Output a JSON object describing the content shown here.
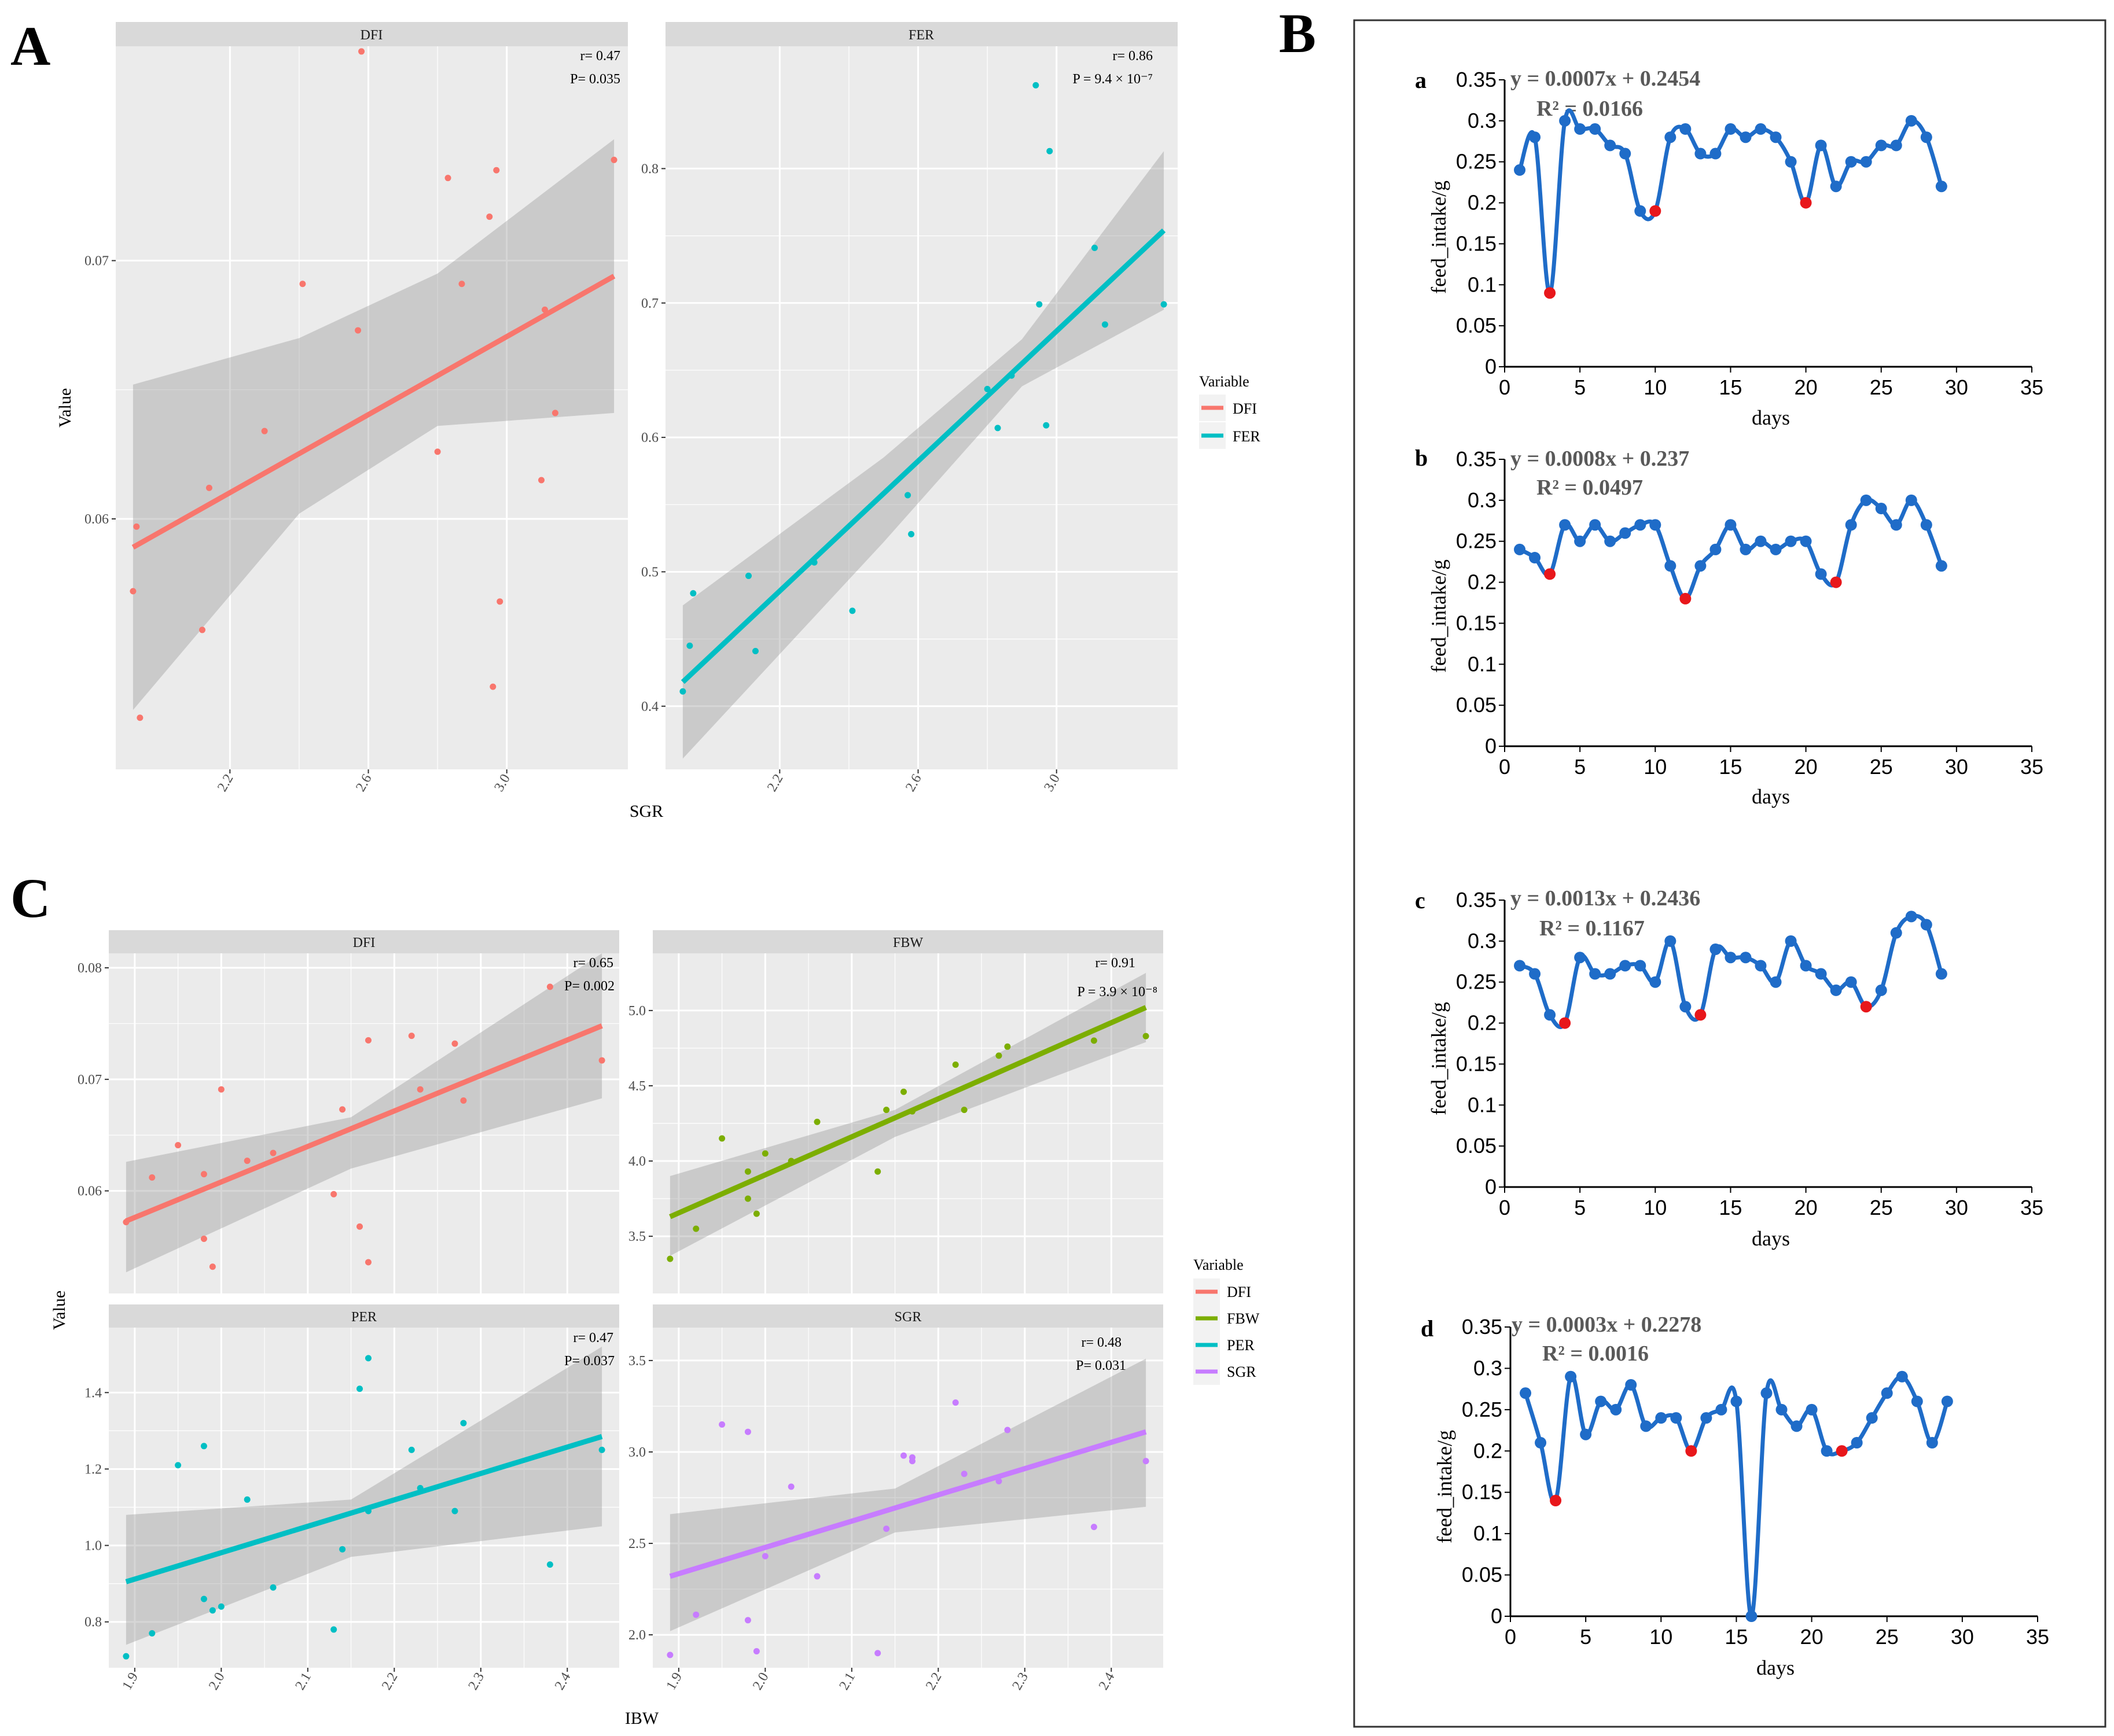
{
  "panels": {
    "A": "A",
    "B": "B",
    "C": "C"
  },
  "A": {
    "xlabel": "SGR",
    "ylabel": "Value",
    "legend": {
      "title": "Variable",
      "items": [
        {
          "label": "DFI",
          "color": "#F8766D"
        },
        {
          "label": "FER",
          "color": "#00BFC4"
        }
      ]
    },
    "facets": [
      {
        "strip": "DFI",
        "stat1": "r= 0.47",
        "stat2": "P= 0.035"
      },
      {
        "strip": "FER",
        "stat1": "r= 0.86",
        "stat2": "P = 9.4 × 10⁻⁷"
      }
    ]
  },
  "C": {
    "xlabel": "IBW",
    "ylabel": "Value",
    "legend": {
      "title": "Variable",
      "items": [
        {
          "label": "DFI",
          "color": "#F8766D"
        },
        {
          "label": "FBW",
          "color": "#7CAE00"
        },
        {
          "label": "PER",
          "color": "#00BFC4"
        },
        {
          "label": "SGR",
          "color": "#C77CFF"
        }
      ]
    },
    "facets": [
      {
        "strip": "DFI",
        "stat1": "r= 0.65",
        "stat2": "P= 0.002"
      },
      {
        "strip": "FBW",
        "stat1": "r= 0.91",
        "stat2": "P = 3.9 × 10⁻⁸"
      },
      {
        "strip": "PER",
        "stat1": "r= 0.47",
        "stat2": "P= 0.037"
      },
      {
        "strip": "SGR",
        "stat1": "r= 0.48",
        "stat2": "P= 0.031"
      }
    ]
  },
  "B": {
    "xlabel": "days",
    "ylabel": "feed_intake/g",
    "charts": [
      {
        "letter": "a",
        "equation": "y = 0.0007x + 0.2454",
        "r2": "R² = 0.0166"
      },
      {
        "letter": "b",
        "equation": "y = 0.0008x + 0.237",
        "r2": "R² = 0.0497"
      },
      {
        "letter": "c",
        "equation": "y = 0.0013x + 0.2436",
        "r2": "R² = 0.1167"
      },
      {
        "letter": "d",
        "equation": "y = 0.0003x + 0.2278",
        "r2": "R² = 0.0016"
      }
    ]
  },
  "chart_data": [
    {
      "id": "A-DFI",
      "type": "scatter",
      "title": "DFI",
      "xlabel": "SGR",
      "ylabel": "Value",
      "color": "#F8766D",
      "xlim": [
        1.87,
        3.35
      ],
      "ylim": [
        0.0503,
        0.0783
      ],
      "xticks": [
        2.2,
        2.6,
        3.0
      ],
      "xtick_labels": [
        "2.2",
        "2.6",
        "3.0"
      ],
      "yticks": [
        0.06,
        0.07
      ],
      "ytick_labels": [
        "0.06",
        "0.07"
      ],
      "fit": {
        "x": [
          1.92,
          3.31
        ],
        "y": [
          0.0589,
          0.0694
        ]
      },
      "band": {
        "x": [
          1.92,
          2.4,
          2.8,
          3.31
        ],
        "upper": [
          0.0652,
          0.067,
          0.0695,
          0.0747
        ],
        "lower": [
          0.0526,
          0.0602,
          0.0636,
          0.0641
        ]
      },
      "x": [
        1.92,
        1.93,
        1.94,
        2.12,
        2.14,
        2.41,
        2.3,
        2.57,
        2.58,
        2.8,
        2.83,
        2.87,
        2.95,
        2.97,
        2.96,
        2.98,
        3.1,
        3.11,
        3.14,
        3.31
      ],
      "y": [
        0.0572,
        0.0597,
        0.0523,
        0.0557,
        0.0612,
        0.0691,
        0.0634,
        0.0673,
        0.0781,
        0.0626,
        0.0732,
        0.0691,
        0.0717,
        0.0735,
        0.0535,
        0.0568,
        0.0615,
        0.0681,
        0.0641,
        0.0739
      ]
    },
    {
      "id": "A-FER",
      "type": "scatter",
      "title": "FER",
      "xlabel": "SGR",
      "ylabel": "Value",
      "color": "#00BFC4",
      "xlim": [
        1.87,
        3.35
      ],
      "ylim": [
        0.353,
        0.891
      ],
      "xticks": [
        2.2,
        2.6,
        3.0
      ],
      "xtick_labels": [
        "2.2",
        "2.6",
        "3.0"
      ],
      "yticks": [
        0.4,
        0.5,
        0.6,
        0.7,
        0.8
      ],
      "ytick_labels": [
        "0.4",
        "0.5",
        "0.6",
        "0.7",
        "0.8"
      ],
      "fit": {
        "x": [
          1.92,
          3.31
        ],
        "y": [
          0.418,
          0.754
        ]
      },
      "band": {
        "x": [
          1.92,
          2.5,
          2.9,
          3.31
        ],
        "upper": [
          0.475,
          0.585,
          0.673,
          0.813
        ],
        "lower": [
          0.361,
          0.522,
          0.638,
          0.695
        ]
      },
      "x": [
        1.92,
        1.94,
        1.95,
        2.11,
        2.13,
        2.3,
        2.41,
        2.57,
        2.58,
        2.8,
        2.83,
        2.87,
        2.94,
        2.95,
        2.97,
        2.98,
        3.11,
        3.14,
        3.31
      ],
      "y": [
        0.411,
        0.445,
        0.484,
        0.497,
        0.441,
        0.507,
        0.471,
        0.557,
        0.528,
        0.636,
        0.607,
        0.646,
        0.862,
        0.699,
        0.609,
        0.813,
        0.741,
        0.684,
        0.699
      ]
    },
    {
      "id": "C-DFI",
      "type": "scatter",
      "title": "DFI",
      "xlabel": "IBW",
      "ylabel": "Value",
      "color": "#F8766D",
      "xlim": [
        1.87,
        2.46
      ],
      "ylim": [
        0.0508,
        0.0813
      ],
      "xticks": [
        1.9,
        2.0,
        2.1,
        2.2,
        2.3,
        2.4
      ],
      "xtick_labels": [
        "1.9",
        "2.0",
        "2.1",
        "2.2",
        "2.3",
        "2.4"
      ],
      "yticks": [
        0.06,
        0.07,
        0.08
      ],
      "ytick_labels": [
        "0.06",
        "0.07",
        "0.08"
      ],
      "fit": {
        "x": [
          1.89,
          2.44
        ],
        "y": [
          0.0573,
          0.0748
        ]
      },
      "band": {
        "x": [
          1.89,
          2.15,
          2.44
        ],
        "upper": [
          0.0626,
          0.0666,
          0.0813
        ],
        "lower": [
          0.0527,
          0.062,
          0.0683
        ]
      },
      "x": [
        1.89,
        1.92,
        1.95,
        1.98,
        1.98,
        1.99,
        2.0,
        2.03,
        2.06,
        2.13,
        2.14,
        2.16,
        2.17,
        2.17,
        2.22,
        2.23,
        2.27,
        2.28,
        2.38,
        2.44
      ],
      "y": [
        0.0572,
        0.0612,
        0.0641,
        0.0615,
        0.0557,
        0.0532,
        0.0691,
        0.0627,
        0.0634,
        0.0597,
        0.0673,
        0.0568,
        0.0735,
        0.0536,
        0.0739,
        0.0691,
        0.0732,
        0.0681,
        0.0783,
        0.0717
      ]
    },
    {
      "id": "C-FBW",
      "type": "scatter",
      "title": "FBW",
      "xlabel": "IBW",
      "ylabel": "Value",
      "color": "#7CAE00",
      "xlim": [
        1.87,
        2.46
      ],
      "ylim": [
        3.12,
        5.38
      ],
      "xticks": [
        1.9,
        2.0,
        2.1,
        2.2,
        2.3,
        2.4
      ],
      "xtick_labels": [
        "1.9",
        "2.0",
        "2.1",
        "2.2",
        "2.3",
        "2.4"
      ],
      "yticks": [
        3.5,
        4.0,
        4.5,
        5.0
      ],
      "ytick_labels": [
        "3.5",
        "4.0",
        "4.5",
        "5.0"
      ],
      "fit": {
        "x": [
          1.89,
          2.44
        ],
        "y": [
          3.63,
          5.02
        ]
      },
      "band": {
        "x": [
          1.89,
          2.15,
          2.44
        ],
        "upper": [
          3.9,
          4.34,
          5.25
        ],
        "lower": [
          3.37,
          4.16,
          4.79
        ]
      },
      "x": [
        1.89,
        1.92,
        1.95,
        1.98,
        1.98,
        1.99,
        2.0,
        2.03,
        2.06,
        2.13,
        2.14,
        2.16,
        2.17,
        2.22,
        2.23,
        2.27,
        2.28,
        2.38,
        2.44
      ],
      "y": [
        3.35,
        3.55,
        4.15,
        3.93,
        3.75,
        3.65,
        4.05,
        4.0,
        4.26,
        3.93,
        4.34,
        4.46,
        4.33,
        4.64,
        4.34,
        4.7,
        4.76,
        4.8,
        4.83
      ]
    },
    {
      "id": "C-PER",
      "type": "scatter",
      "title": "PER",
      "xlabel": "IBW",
      "ylabel": "Value",
      "color": "#00BFC4",
      "xlim": [
        1.87,
        2.46
      ],
      "ylim": [
        0.68,
        1.57
      ],
      "xticks": [
        1.9,
        2.0,
        2.1,
        2.2,
        2.3,
        2.4
      ],
      "xtick_labels": [
        "1.9",
        "2.0",
        "2.1",
        "2.2",
        "2.3",
        "2.4"
      ],
      "yticks": [
        0.8,
        1.0,
        1.2,
        1.4
      ],
      "ytick_labels": [
        "0.8",
        "1.0",
        "1.2",
        "1.4"
      ],
      "fit": {
        "x": [
          1.89,
          2.44
        ],
        "y": [
          0.905,
          1.285
        ]
      },
      "band": {
        "x": [
          1.89,
          2.15,
          2.44
        ],
        "upper": [
          1.08,
          1.12,
          1.52
        ],
        "lower": [
          0.74,
          0.97,
          1.05
        ]
      },
      "x": [
        1.89,
        1.92,
        1.95,
        1.98,
        1.98,
        1.99,
        2.0,
        2.03,
        2.06,
        2.13,
        2.14,
        2.16,
        2.17,
        2.17,
        2.22,
        2.23,
        2.27,
        2.28,
        2.38,
        2.44
      ],
      "y": [
        0.71,
        0.77,
        1.21,
        1.26,
        0.86,
        0.83,
        0.84,
        1.12,
        0.89,
        0.78,
        0.99,
        1.41,
        1.49,
        1.09,
        1.25,
        1.15,
        1.09,
        1.32,
        0.95,
        1.25
      ]
    },
    {
      "id": "C-SGR",
      "type": "scatter",
      "title": "SGR",
      "xlabel": "IBW",
      "ylabel": "Value",
      "color": "#C77CFF",
      "xlim": [
        1.87,
        2.46
      ],
      "ylim": [
        1.82,
        3.68
      ],
      "xticks": [
        1.9,
        2.0,
        2.1,
        2.2,
        2.3,
        2.4
      ],
      "xtick_labels": [
        "1.9",
        "2.0",
        "2.1",
        "2.2",
        "2.3",
        "2.4"
      ],
      "yticks": [
        2.0,
        2.5,
        3.0,
        3.5
      ],
      "ytick_labels": [
        "2.0",
        "2.5",
        "3.0",
        "3.5"
      ],
      "fit": {
        "x": [
          1.89,
          2.44
        ],
        "y": [
          2.32,
          3.11
        ]
      },
      "band": {
        "x": [
          1.89,
          2.15,
          2.44
        ],
        "upper": [
          2.66,
          2.8,
          3.51
        ],
        "lower": [
          2.02,
          2.56,
          2.7
        ]
      },
      "x": [
        1.89,
        1.92,
        1.95,
        1.98,
        1.98,
        1.99,
        2.0,
        2.03,
        2.06,
        2.13,
        2.14,
        2.16,
        2.17,
        2.17,
        2.22,
        2.23,
        2.27,
        2.28,
        2.38,
        2.44
      ],
      "y": [
        1.89,
        2.11,
        3.15,
        3.11,
        2.08,
        1.91,
        2.43,
        2.81,
        2.32,
        1.9,
        2.58,
        2.98,
        2.97,
        2.95,
        3.27,
        2.88,
        2.84,
        3.12,
        2.59,
        2.95
      ]
    },
    {
      "id": "B-a",
      "type": "line",
      "title": "a",
      "xlabel": "days",
      "ylabel": "feed_intake/g",
      "xlim": [
        0,
        35
      ],
      "ylim": [
        0,
        0.35
      ],
      "xticks": [
        0,
        5,
        10,
        15,
        20,
        25,
        30,
        35
      ],
      "xtick_labels": [
        "0",
        "5",
        "10",
        "15",
        "20",
        "25",
        "30",
        "35"
      ],
      "yticks": [
        0,
        0.05,
        0.1,
        0.15,
        0.2,
        0.25,
        0.3,
        0.35
      ],
      "ytick_labels": [
        "0",
        "0.05",
        "0.1",
        "0.15",
        "0.2",
        "0.25",
        "0.3",
        "0.35"
      ],
      "x": [
        1,
        2,
        3,
        4,
        5,
        6,
        7,
        8,
        9,
        10,
        11,
        12,
        13,
        14,
        15,
        16,
        17,
        18,
        19,
        20,
        21,
        22,
        23,
        24,
        25,
        26,
        27,
        28,
        29
      ],
      "y": [
        0.24,
        0.28,
        0.09,
        0.3,
        0.29,
        0.29,
        0.27,
        0.26,
        0.19,
        0.19,
        0.28,
        0.29,
        0.26,
        0.26,
        0.29,
        0.28,
        0.29,
        0.28,
        0.25,
        0.2,
        0.27,
        0.22,
        0.25,
        0.25,
        0.27,
        0.27,
        0.3,
        0.28,
        0.22
      ],
      "highlight_days": [
        3,
        10,
        20
      ]
    },
    {
      "id": "B-b",
      "type": "line",
      "title": "b",
      "xlabel": "days",
      "ylabel": "feed_intake/g",
      "xlim": [
        0,
        35
      ],
      "ylim": [
        0,
        0.35
      ],
      "xticks": [
        0,
        5,
        10,
        15,
        20,
        25,
        30,
        35
      ],
      "xtick_labels": [
        "0",
        "5",
        "10",
        "15",
        "20",
        "25",
        "30",
        "35"
      ],
      "yticks": [
        0,
        0.05,
        0.1,
        0.15,
        0.2,
        0.25,
        0.3,
        0.35
      ],
      "ytick_labels": [
        "0",
        "0.05",
        "0.1",
        "0.15",
        "0.2",
        "0.25",
        "0.3",
        "0.35"
      ],
      "x": [
        1,
        2,
        3,
        4,
        5,
        6,
        7,
        8,
        9,
        10,
        11,
        12,
        13,
        14,
        15,
        16,
        17,
        18,
        19,
        20,
        21,
        22,
        23,
        24,
        25,
        26,
        27,
        28,
        29
      ],
      "y": [
        0.24,
        0.23,
        0.21,
        0.27,
        0.25,
        0.27,
        0.25,
        0.26,
        0.27,
        0.27,
        0.22,
        0.18,
        0.22,
        0.24,
        0.27,
        0.24,
        0.25,
        0.24,
        0.25,
        0.25,
        0.21,
        0.2,
        0.27,
        0.3,
        0.29,
        0.27,
        0.3,
        0.27,
        0.22
      ],
      "highlight_days": [
        3,
        12,
        22
      ]
    },
    {
      "id": "B-c",
      "type": "line",
      "title": "c",
      "xlabel": "days",
      "ylabel": "feed_intake/g",
      "xlim": [
        0,
        35
      ],
      "ylim": [
        0,
        0.35
      ],
      "xticks": [
        0,
        5,
        10,
        15,
        20,
        25,
        30,
        35
      ],
      "xtick_labels": [
        "0",
        "5",
        "10",
        "15",
        "20",
        "25",
        "30",
        "35"
      ],
      "yticks": [
        0,
        0.05,
        0.1,
        0.15,
        0.2,
        0.25,
        0.3,
        0.35
      ],
      "ytick_labels": [
        "0",
        "0.05",
        "0.1",
        "0.15",
        "0.2",
        "0.25",
        "0.3",
        "0.35"
      ],
      "x": [
        1,
        2,
        3,
        4,
        5,
        6,
        7,
        8,
        9,
        10,
        11,
        12,
        13,
        14,
        15,
        16,
        17,
        18,
        19,
        20,
        21,
        22,
        23,
        24,
        25,
        26,
        27,
        28,
        29
      ],
      "y": [
        0.27,
        0.26,
        0.21,
        0.2,
        0.28,
        0.26,
        0.26,
        0.27,
        0.27,
        0.25,
        0.3,
        0.22,
        0.21,
        0.29,
        0.28,
        0.28,
        0.27,
        0.25,
        0.3,
        0.27,
        0.26,
        0.24,
        0.25,
        0.22,
        0.24,
        0.31,
        0.33,
        0.32,
        0.26
      ],
      "highlight_days": [
        4,
        13,
        24
      ]
    },
    {
      "id": "B-d",
      "type": "line",
      "title": "d",
      "xlabel": "days",
      "ylabel": "feed_intake/g",
      "xlim": [
        0,
        35
      ],
      "ylim": [
        0,
        0.35
      ],
      "xticks": [
        0,
        5,
        10,
        15,
        20,
        25,
        30,
        35
      ],
      "xtick_labels": [
        "0",
        "5",
        "10",
        "15",
        "20",
        "25",
        "30",
        "35"
      ],
      "yticks": [
        0,
        0.05,
        0.1,
        0.15,
        0.2,
        0.25,
        0.3,
        0.35
      ],
      "ytick_labels": [
        "0",
        "0.05",
        "0.1",
        "0.15",
        "0.2",
        "0.25",
        "0.3",
        "0.35"
      ],
      "x": [
        1,
        2,
        3,
        4,
        5,
        6,
        7,
        8,
        9,
        10,
        11,
        12,
        13,
        14,
        15,
        16,
        17,
        18,
        19,
        20,
        21,
        22,
        23,
        24,
        25,
        26,
        27,
        28,
        29
      ],
      "y": [
        0.27,
        0.21,
        0.14,
        0.29,
        0.22,
        0.26,
        0.25,
        0.28,
        0.23,
        0.24,
        0.24,
        0.2,
        0.24,
        0.25,
        0.26,
        0.0,
        0.27,
        0.25,
        0.23,
        0.25,
        0.2,
        0.2,
        0.21,
        0.24,
        0.27,
        0.29,
        0.26,
        0.21,
        0.26
      ],
      "highlight_days": [
        3,
        12,
        22
      ]
    }
  ]
}
